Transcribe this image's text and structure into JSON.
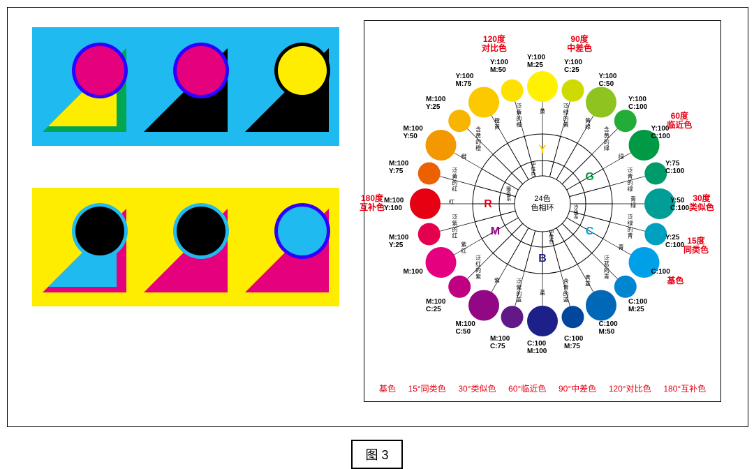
{
  "caption": "图 3",
  "leftDemos": [
    {
      "bg": "#1fbaf0",
      "cells": [
        {
          "triOuter": "#00a650",
          "triInner": "#ffed00",
          "ring": "#2e00ff",
          "circ": "#e5007e"
        },
        {
          "triOuter": "#000000",
          "triInner": "#000000",
          "ring": "#2e00ff",
          "circ": "#e5007e"
        },
        {
          "triOuter": "#000000",
          "triInner": "#000000",
          "ring": "#000000",
          "circ": "#ffed00"
        }
      ]
    },
    {
      "bg": "#ffed00",
      "cells": [
        {
          "triOuter": "#e5007e",
          "triInner": "#1fbaf0",
          "ring": "#1fbaf0",
          "circ": "#000000"
        },
        {
          "triOuter": "#e5007e",
          "triInner": "#e5007e",
          "ring": "#1fbaf0",
          "circ": "#000000"
        },
        {
          "triOuter": "#e5007e",
          "triInner": "#e5007e",
          "ring": "#2e00ff",
          "circ": "#1fbaf0"
        }
      ]
    }
  ],
  "wheel": {
    "center_label": "24色\n色相环",
    "letters": [
      {
        "t": "R",
        "c": "#e60012",
        "ang": 180
      },
      {
        "t": "Y",
        "c": "#ffd800",
        "ang": 90
      },
      {
        "t": "G",
        "c": "#009944",
        "ang": 30
      },
      {
        "t": "C",
        "c": "#00a0e9",
        "ang": -30
      },
      {
        "t": "B",
        "c": "#1d2088",
        "ang": -90
      },
      {
        "t": "M",
        "c": "#920783",
        "ang": -150
      }
    ],
    "mid_labels": [
      "暖色系",
      "中性色",
      "",
      "冷色系",
      "中性色",
      ""
    ],
    "slices": [
      {
        "c": "#e60012",
        "lab": "红",
        "val": "M:100\nY:100"
      },
      {
        "c": "#eb6100",
        "lab": "泛黄的红",
        "val": "M:100\nY:75"
      },
      {
        "c": "#f39800",
        "lab": "橙",
        "val": "M:100\nY:50"
      },
      {
        "c": "#f8b500",
        "lab": "含黄的橙",
        "val": "M:100\nY:25"
      },
      {
        "c": "#fcc800",
        "lab": "橙黄",
        "val": "Y:100\nM:75"
      },
      {
        "c": "#ffe100",
        "lab": "泛黄的橙",
        "val": "Y:100\nM:50"
      },
      {
        "c": "#fff100",
        "lab": "黄",
        "val": "Y:100\nM:25"
      },
      {
        "c": "#cfdb00",
        "lab": "泛绿的黄",
        "val": "Y:100\nC:25"
      },
      {
        "c": "#8fc31f",
        "lab": "黄绿",
        "val": "Y:100\nC:50"
      },
      {
        "c": "#22ac38",
        "lab": "含黄的绿",
        "val": "Y:100\nC:100"
      },
      {
        "c": "#009944",
        "lab": "绿",
        "val": "Y:100\nC:100"
      },
      {
        "c": "#009b6b",
        "lab": "泛青的绿",
        "val": "Y:75\nC:100"
      },
      {
        "c": "#009e96",
        "lab": "青绿",
        "val": "Y:50\nC:100"
      },
      {
        "c": "#00a0c1",
        "lab": "泛绿的青",
        "val": "Y:25\nC:100"
      },
      {
        "c": "#00a0e9",
        "lab": "青",
        "val": "C:100"
      },
      {
        "c": "#0086d1",
        "lab": "泛蓝的青",
        "val": "C:100\nM:25"
      },
      {
        "c": "#0068b7",
        "lab": "青蓝",
        "val": "C:100\nM:50"
      },
      {
        "c": "#00479d",
        "lab": "含青的蓝",
        "val": "C:100\nM:75"
      },
      {
        "c": "#1d2088",
        "lab": "蓝",
        "val": "C:100\nM:100"
      },
      {
        "c": "#601986",
        "lab": "泛紫的蓝",
        "val": "M:100\nC:75"
      },
      {
        "c": "#920783",
        "lab": "紫",
        "val": "M:100\nC:50"
      },
      {
        "c": "#be0081",
        "lab": "泛红的紫",
        "val": "M:100\nC:25"
      },
      {
        "c": "#e4007f",
        "lab": "紫红",
        "val": "M:100"
      },
      {
        "c": "#e5004f",
        "lab": "泛紫的红",
        "val": "M:100\nY:25"
      }
    ],
    "arrows": [
      {
        "ang": 180,
        "t": "180度\n互补色"
      },
      {
        "ang": 105,
        "t": "120度\n对比色"
      },
      {
        "ang": 75,
        "t": "90度\n中差色"
      },
      {
        "ang": 30,
        "t": "60度\n临近色"
      },
      {
        "ang": 0,
        "t": "30度\n类似色"
      },
      {
        "ang": -15,
        "t": "15度\n同类色"
      },
      {
        "ang": -30,
        "t": "基色"
      }
    ],
    "legend": [
      "基色",
      "15°同类色",
      "30°类似色",
      "60°临近色",
      "90°中差色",
      "120°对比色",
      "180°互补色"
    ]
  }
}
